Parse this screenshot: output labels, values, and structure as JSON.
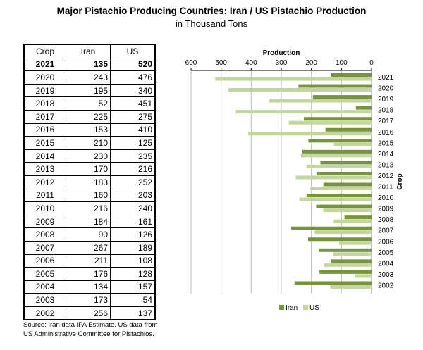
{
  "title": "Major Pistachio Producing Countries: Iran / US Pistachio Production",
  "subtitle": "in Thousand Tons",
  "table": {
    "headers": [
      "Crop",
      "Iran",
      "US"
    ],
    "rows": [
      [
        "2021",
        "135",
        "520"
      ],
      [
        "2020",
        "243",
        "476"
      ],
      [
        "2019",
        "195",
        "340"
      ],
      [
        "2018",
        "52",
        "451"
      ],
      [
        "2017",
        "225",
        "275"
      ],
      [
        "2016",
        "153",
        "410"
      ],
      [
        "2015",
        "210",
        "125"
      ],
      [
        "2014",
        "230",
        "235"
      ],
      [
        "2013",
        "170",
        "216"
      ],
      [
        "2012",
        "183",
        "252"
      ],
      [
        "2011",
        "160",
        "203"
      ],
      [
        "2010",
        "216",
        "240"
      ],
      [
        "2009",
        "184",
        "161"
      ],
      [
        "2008",
        "90",
        "126"
      ],
      [
        "2007",
        "267",
        "189"
      ],
      [
        "2006",
        "211",
        "108"
      ],
      [
        "2005",
        "176",
        "128"
      ],
      [
        "2004",
        "134",
        "157"
      ],
      [
        "2003",
        "173",
        "54"
      ],
      [
        "2002",
        "256",
        "137"
      ]
    ]
  },
  "source": "Source: Iran data IPA Estimate. US data from US Administrative Committee for Pistachios.",
  "chart_data": {
    "type": "bar",
    "orientation": "horizontal",
    "xlabel": "Production",
    "ylabel": "Crop",
    "xlim": [
      0,
      600
    ],
    "x_reversed": true,
    "xticks": [
      "600",
      "500",
      "400",
      "300",
      "200",
      "100",
      "0"
    ],
    "grid": true,
    "legend": "bottom",
    "categories": [
      "2021",
      "2020",
      "2019",
      "2018",
      "2017",
      "2016",
      "2015",
      "2014",
      "2013",
      "2012",
      "2011",
      "2010",
      "2009",
      "2008",
      "2007",
      "2006",
      "2005",
      "2004",
      "2003",
      "2002"
    ],
    "series": [
      {
        "name": "Iran",
        "color": "#77933c",
        "values": [
          135,
          243,
          195,
          52,
          225,
          153,
          210,
          230,
          170,
          183,
          160,
          216,
          184,
          90,
          267,
          211,
          176,
          134,
          173,
          256
        ]
      },
      {
        "name": "US",
        "color": "#c3d69b",
        "values": [
          520,
          476,
          340,
          451,
          275,
          410,
          125,
          235,
          216,
          252,
          203,
          240,
          161,
          126,
          189,
          108,
          128,
          157,
          54,
          137
        ]
      }
    ]
  }
}
